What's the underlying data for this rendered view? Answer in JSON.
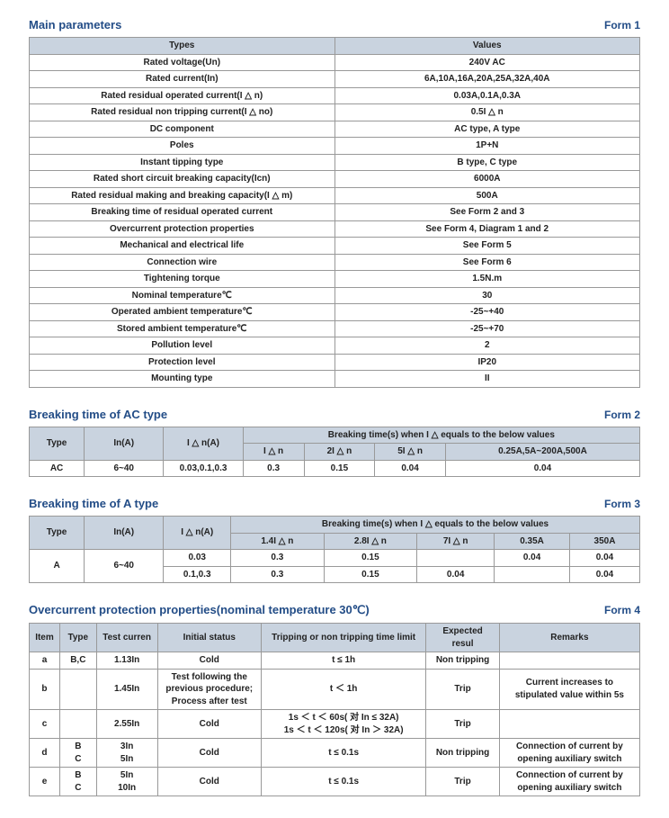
{
  "form1": {
    "title": "Main parameters",
    "form_label": "Form 1",
    "head_types": "Types",
    "head_values": "Values",
    "rows": [
      {
        "k": "Rated voltage(Un)",
        "v": "240V AC"
      },
      {
        "k": "Rated current(In)",
        "v": "6A,10A,16A,20A,25A,32A,40A"
      },
      {
        "k": "Rated residual operated current(I △ n)",
        "v": "0.03A,0.1A,0.3A"
      },
      {
        "k": "Rated residual non tripping current(I △ no)",
        "v": "0.5I △ n"
      },
      {
        "k": "DC component",
        "v": "AC type, A type"
      },
      {
        "k": "Poles",
        "v": "1P+N"
      },
      {
        "k": "Instant tipping type",
        "v": "B type, C type"
      },
      {
        "k": "Rated short circuit breaking capacity(Icn)",
        "v": "6000A"
      },
      {
        "k": "Rated residual making and breaking capacity(I △ m)",
        "v": "500A"
      },
      {
        "k": "Breaking time of residual operated current",
        "v": "See Form 2 and 3"
      },
      {
        "k": "Overcurrent protection properties",
        "v": "See Form 4, Diagram 1 and 2"
      },
      {
        "k": "Mechanical and electrical life",
        "v": "See Form 5"
      },
      {
        "k": "Connection wire",
        "v": "See Form 6"
      },
      {
        "k": "Tightening torque",
        "v": "1.5N.m"
      },
      {
        "k": "Nominal temperature℃",
        "v": "30"
      },
      {
        "k": "Operated ambient temperature℃",
        "v": "-25~+40"
      },
      {
        "k": "Stored ambient temperature℃",
        "v": "-25~+70"
      },
      {
        "k": "Pollution level",
        "v": "2"
      },
      {
        "k": "Protection level",
        "v": "IP20"
      },
      {
        "k": "Mounting type",
        "v": "II"
      }
    ]
  },
  "form2": {
    "title": "Breaking time of AC type",
    "form_label": "Form 2",
    "h_type": "Type",
    "h_inA": "In(A)",
    "h_idnA": "I △ n(A)",
    "h_top": "Breaking time(s) when I △ equals to the below values",
    "h_c1": "I △ n",
    "h_c2": "2I △ n",
    "h_c3": "5I △ n",
    "h_c4": "0.25A,5A~200A,500A",
    "row": {
      "type": "AC",
      "in": "6~40",
      "idn": "0.03,0.1,0.3",
      "c1": "0.3",
      "c2": "0.15",
      "c3": "0.04",
      "c4": "0.04"
    }
  },
  "form3": {
    "title": "Breaking time of A type",
    "form_label": "Form 3",
    "h_type": "Type",
    "h_inA": "In(A)",
    "h_idnA": "I △ n(A)",
    "h_top": "Breaking time(s) when I △ equals to the below values",
    "h_c1": "1.4I △ n",
    "h_c2": "2.8I △ n",
    "h_c3": "7I △ n",
    "h_c4": "0.35A",
    "h_c5": "350A",
    "body": {
      "type": "A",
      "in": "6~40",
      "r1": {
        "idn": "0.03",
        "c1": "0.3",
        "c2": "0.15",
        "c3": "",
        "c4": "0.04",
        "c5": "0.04"
      },
      "r2": {
        "idn": "0.1,0.3",
        "c1": "0.3",
        "c2": "0.15",
        "c3": "0.04",
        "c4": "",
        "c5": "0.04"
      }
    }
  },
  "form4": {
    "title": "Overcurrent protection properties(nominal temperature 30℃)",
    "form_label": "Form 4",
    "h_item": "Item",
    "h_type": "Type",
    "h_test": "Test curren",
    "h_init": "Initial status",
    "h_limit": "Tripping or non tripping time limit",
    "h_expect": "Expected resul",
    "h_remarks": "Remarks",
    "rows": {
      "a": {
        "item": "a",
        "type": "B,C",
        "test": "1.13In",
        "init": "Cold",
        "limit": "t ≤ 1h",
        "expect": "Non tripping",
        "remarks": ""
      },
      "b": {
        "item": "b",
        "type": "",
        "test": "1.45In",
        "init": "Test following the previous procedure; Process after test",
        "limit": "t ＜ 1h",
        "expect": "Trip",
        "remarks": "Current increases to stipulated value within 5s"
      },
      "c": {
        "item": "c",
        "type": "",
        "test": "2.55In",
        "init": "Cold",
        "limit": "1s ＜ t ＜ 60s( 对 In ≤ 32A)\n1s ＜ t ＜ 120s( 对 In ＞ 32A)",
        "expect": "Trip",
        "remarks": ""
      },
      "d": {
        "item": "d",
        "type": "B\nC",
        "test": "3In\n5In",
        "init": "Cold",
        "limit": "t ≤ 0.1s",
        "expect": "Non tripping",
        "remarks": "Connection of current by opening auxiliary switch"
      },
      "e": {
        "item": "e",
        "type": "B\nC",
        "test": "5In\n10In",
        "init": "Cold",
        "limit": "t ≤ 0.1s",
        "expect": "Trip",
        "remarks": "Connection of current by opening auxiliary switch"
      }
    }
  }
}
